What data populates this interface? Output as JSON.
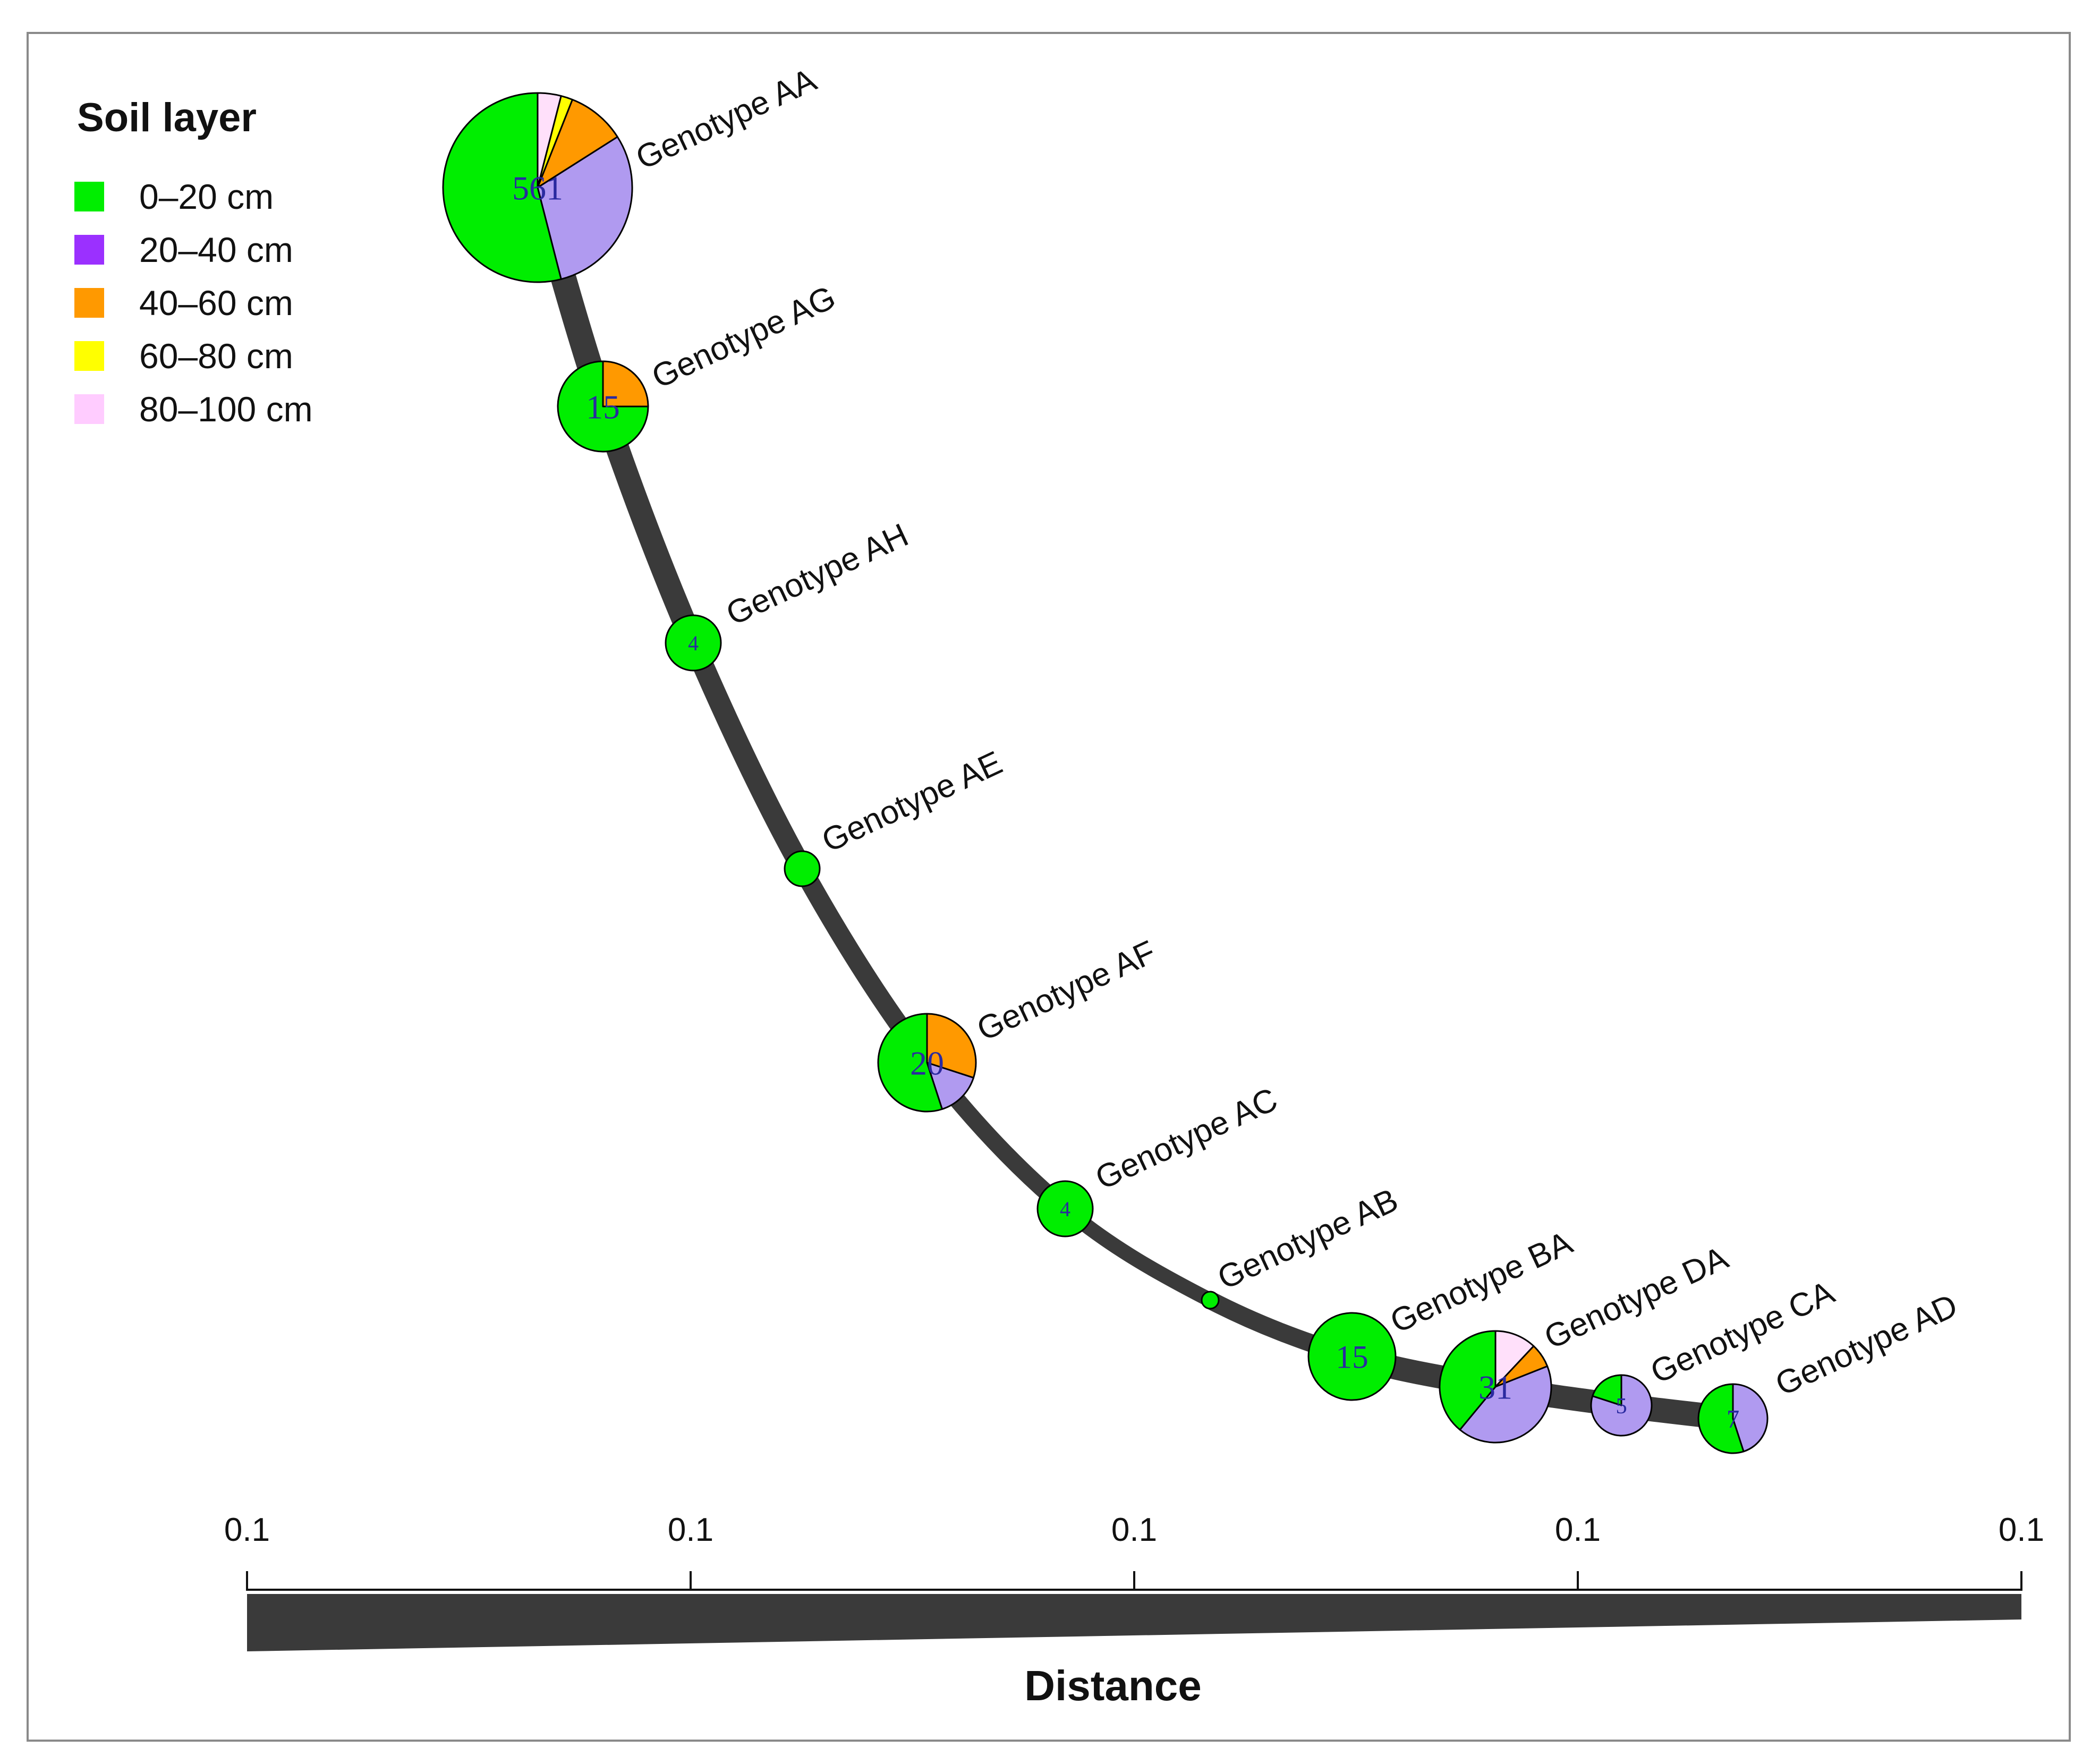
{
  "legend": {
    "title": "Soil layer",
    "items": [
      {
        "label": "0–20 cm",
        "color": "#00ee00"
      },
      {
        "label": "20–40 cm",
        "color": "#9b30ff"
      },
      {
        "label": "40–60 cm",
        "color": "#ff9900"
      },
      {
        "label": "60–80 cm",
        "color": "#ffff00"
      },
      {
        "label": "80–100 cm",
        "color": "#ffccff"
      }
    ]
  },
  "pie_colors": [
    "#00ee00",
    "#b09af0",
    "#ff9900",
    "#ffff00",
    "#ffe0fa"
  ],
  "edge_color": "#3a3a3a",
  "nodes": [
    {
      "label": "Genotype AA",
      "count": "561",
      "shares": [
        0.54,
        0.3,
        0.1,
        0.02,
        0.04
      ]
    },
    {
      "label": "Genotype AG",
      "count": "15",
      "shares": [
        0.75,
        0.0,
        0.25,
        0.0,
        0.0
      ]
    },
    {
      "label": "Genotype AH",
      "count": "4",
      "shares": [
        1,
        0,
        0,
        0,
        0
      ]
    },
    {
      "label": "Genotype AE",
      "count": "",
      "shares": [
        1,
        0,
        0,
        0,
        0
      ]
    },
    {
      "label": "Genotype AF",
      "count": "20",
      "shares": [
        0.55,
        0.15,
        0.3,
        0,
        0
      ]
    },
    {
      "label": "Genotype AC",
      "count": "4",
      "shares": [
        1,
        0,
        0,
        0,
        0
      ]
    },
    {
      "label": "Genotype AB",
      "count": "",
      "shares": [
        1,
        0,
        0,
        0,
        0
      ]
    },
    {
      "label": "Genotype BA",
      "count": "15",
      "shares": [
        1,
        0,
        0,
        0,
        0
      ]
    },
    {
      "label": "Genotype DA",
      "count": "31",
      "shares": [
        0.39,
        0.42,
        0.07,
        0,
        0.12
      ]
    },
    {
      "label": "Genotype CA",
      "count": "5",
      "shares": [
        0.2,
        0.8,
        0,
        0,
        0
      ]
    },
    {
      "label": "Genotype AD",
      "count": "7",
      "shares": [
        0.55,
        0.45,
        0,
        0,
        0
      ]
    }
  ],
  "distance_scale": {
    "ticks": [
      "0.1",
      "0.1",
      "0.1",
      "0.1",
      "0.1"
    ],
    "title": "Distance"
  }
}
